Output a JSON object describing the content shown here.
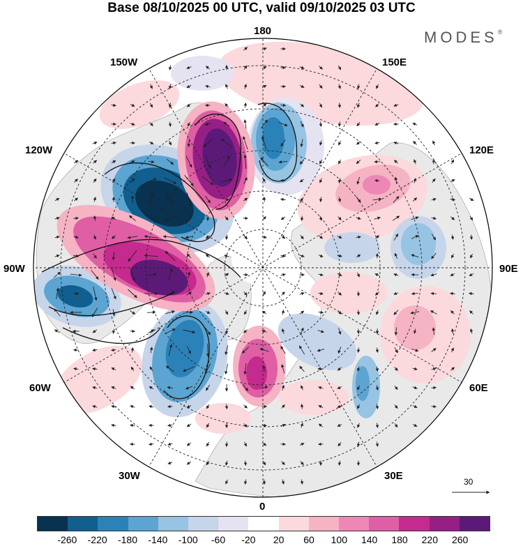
{
  "header": {
    "title": "Base 08/10/2025 00 UTC, valid 09/10/2025 03 UTC",
    "brand": "MODES",
    "brand_mark": "®"
  },
  "map": {
    "projection": "north-polar-stereographic",
    "longitude_labels": {
      "top": "180",
      "top_left": "150W",
      "top_right": "150E",
      "upper_left": "120W",
      "upper_right": "120E",
      "left": "90W",
      "right": "90E",
      "lower_left": "60W",
      "lower_right": "60E",
      "bottom_left": "30W",
      "bottom_right": "30E",
      "bottom": "0"
    },
    "reference_vector": "30"
  },
  "colorbar": {
    "colors": [
      "#08324f",
      "#115f8e",
      "#2a82b9",
      "#5ca4d1",
      "#97c4e2",
      "#c7d5ea",
      "#e5e3f1",
      "#ffffff",
      "#fbd9dd",
      "#f5b3c3",
      "#ee87b5",
      "#df5ea4",
      "#c52a8e",
      "#961f86",
      "#5c1a78"
    ],
    "ticks": [
      "-260",
      "-220",
      "-180",
      "-140",
      "-100",
      "-60",
      "-20",
      "20",
      "60",
      "100",
      "140",
      "180",
      "220",
      "260"
    ]
  }
}
